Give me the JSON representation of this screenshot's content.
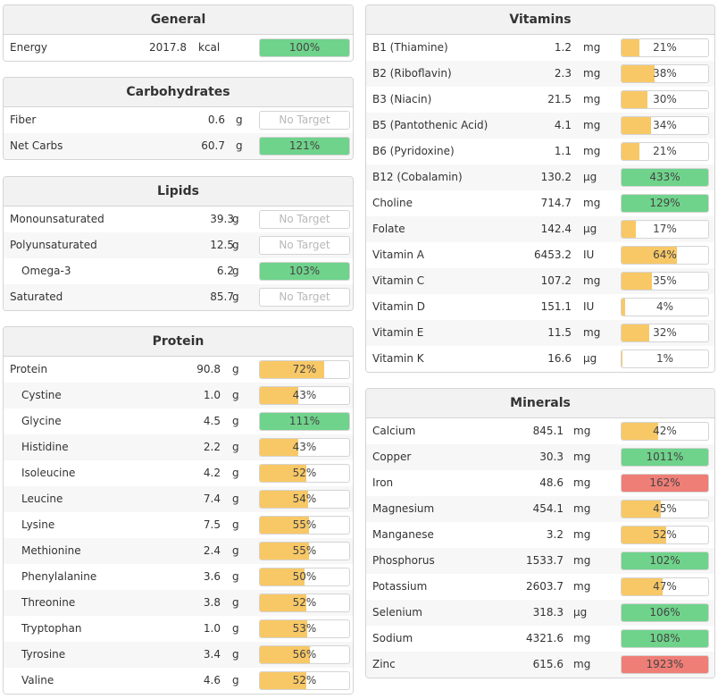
{
  "colors": {
    "green": "#6fd38b",
    "orange": "#f8c866",
    "red": "#ef7e76",
    "none": "#ffffff"
  },
  "panels": [
    {
      "key": "general",
      "title": "General",
      "items": [
        {
          "name": "Energy",
          "amount": "2017.8",
          "unit": "kcal",
          "pct": "100%",
          "fill": 1.0,
          "color": "green"
        }
      ]
    },
    {
      "key": "carbohydrates",
      "title": "Carbohydrates",
      "items": [
        {
          "name": "Fiber",
          "amount": "0.6",
          "unit": "g",
          "pct": "No Target",
          "fill": 0,
          "color": "none"
        },
        {
          "name": "Net Carbs",
          "amount": "60.7",
          "unit": "g",
          "pct": "121%",
          "fill": 1.0,
          "color": "green"
        }
      ]
    },
    {
      "key": "lipids",
      "title": "Lipids",
      "items": [
        {
          "name": "Monounsaturated",
          "amount": "39.3",
          "unit": "g",
          "pct": "No Target",
          "fill": 0,
          "color": "none"
        },
        {
          "name": "Polyunsaturated",
          "amount": "12.5",
          "unit": "g",
          "pct": "No Target",
          "fill": 0,
          "color": "none"
        },
        {
          "name": "Omega-3",
          "amount": "6.2",
          "unit": "g",
          "pct": "103%",
          "fill": 1.0,
          "color": "green",
          "indent": true
        },
        {
          "name": "Saturated",
          "amount": "85.7",
          "unit": "g",
          "pct": "No Target",
          "fill": 0,
          "color": "none"
        }
      ]
    },
    {
      "key": "protein",
      "title": "Protein",
      "items": [
        {
          "name": "Protein",
          "amount": "90.8",
          "unit": "g",
          "pct": "72%",
          "fill": 0.72,
          "color": "orange"
        },
        {
          "name": "Cystine",
          "amount": "1.0",
          "unit": "g",
          "pct": "43%",
          "fill": 0.43,
          "color": "orange",
          "indent": true
        },
        {
          "name": "Glycine",
          "amount": "4.5",
          "unit": "g",
          "pct": "111%",
          "fill": 1.0,
          "color": "green",
          "indent": true
        },
        {
          "name": "Histidine",
          "amount": "2.2",
          "unit": "g",
          "pct": "43%",
          "fill": 0.43,
          "color": "orange",
          "indent": true
        },
        {
          "name": "Isoleucine",
          "amount": "4.2",
          "unit": "g",
          "pct": "52%",
          "fill": 0.52,
          "color": "orange",
          "indent": true
        },
        {
          "name": "Leucine",
          "amount": "7.4",
          "unit": "g",
          "pct": "54%",
          "fill": 0.54,
          "color": "orange",
          "indent": true
        },
        {
          "name": "Lysine",
          "amount": "7.5",
          "unit": "g",
          "pct": "55%",
          "fill": 0.55,
          "color": "orange",
          "indent": true
        },
        {
          "name": "Methionine",
          "amount": "2.4",
          "unit": "g",
          "pct": "55%",
          "fill": 0.55,
          "color": "orange",
          "indent": true
        },
        {
          "name": "Phenylalanine",
          "amount": "3.6",
          "unit": "g",
          "pct": "50%",
          "fill": 0.5,
          "color": "orange",
          "indent": true
        },
        {
          "name": "Threonine",
          "amount": "3.8",
          "unit": "g",
          "pct": "52%",
          "fill": 0.52,
          "color": "orange",
          "indent": true
        },
        {
          "name": "Tryptophan",
          "amount": "1.0",
          "unit": "g",
          "pct": "53%",
          "fill": 0.53,
          "color": "orange",
          "indent": true
        },
        {
          "name": "Tyrosine",
          "amount": "3.4",
          "unit": "g",
          "pct": "56%",
          "fill": 0.56,
          "color": "orange",
          "indent": true
        },
        {
          "name": "Valine",
          "amount": "4.6",
          "unit": "g",
          "pct": "52%",
          "fill": 0.52,
          "color": "orange",
          "indent": true
        }
      ]
    },
    {
      "key": "vitamins",
      "title": "Vitamins",
      "items": [
        {
          "name": "B1 (Thiamine)",
          "amount": "1.2",
          "unit": "mg",
          "pct": "21%",
          "fill": 0.21,
          "color": "orange"
        },
        {
          "name": "B2 (Riboflavin)",
          "amount": "2.3",
          "unit": "mg",
          "pct": "38%",
          "fill": 0.38,
          "color": "orange"
        },
        {
          "name": "B3 (Niacin)",
          "amount": "21.5",
          "unit": "mg",
          "pct": "30%",
          "fill": 0.3,
          "color": "orange"
        },
        {
          "name": "B5 (Pantothenic Acid)",
          "amount": "4.1",
          "unit": "mg",
          "pct": "34%",
          "fill": 0.34,
          "color": "orange"
        },
        {
          "name": "B6 (Pyridoxine)",
          "amount": "1.1",
          "unit": "mg",
          "pct": "21%",
          "fill": 0.21,
          "color": "orange"
        },
        {
          "name": "B12 (Cobalamin)",
          "amount": "130.2",
          "unit": "µg",
          "pct": "433%",
          "fill": 1.0,
          "color": "green"
        },
        {
          "name": "Choline",
          "amount": "714.7",
          "unit": "mg",
          "pct": "129%",
          "fill": 1.0,
          "color": "green"
        },
        {
          "name": "Folate",
          "amount": "142.4",
          "unit": "µg",
          "pct": "17%",
          "fill": 0.17,
          "color": "orange"
        },
        {
          "name": "Vitamin A",
          "amount": "6453.2",
          "unit": "IU",
          "pct": "64%",
          "fill": 0.64,
          "color": "orange"
        },
        {
          "name": "Vitamin C",
          "amount": "107.2",
          "unit": "mg",
          "pct": "35%",
          "fill": 0.35,
          "color": "orange"
        },
        {
          "name": "Vitamin D",
          "amount": "151.1",
          "unit": "IU",
          "pct": "4%",
          "fill": 0.04,
          "color": "orange"
        },
        {
          "name": "Vitamin E",
          "amount": "11.5",
          "unit": "mg",
          "pct": "32%",
          "fill": 0.32,
          "color": "orange"
        },
        {
          "name": "Vitamin K",
          "amount": "16.6",
          "unit": "µg",
          "pct": "1%",
          "fill": 0.01,
          "color": "orange"
        }
      ]
    },
    {
      "key": "minerals",
      "title": "Minerals",
      "items": [
        {
          "name": "Calcium",
          "amount": "845.1",
          "unit": "mg",
          "pct": "42%",
          "fill": 0.42,
          "color": "orange"
        },
        {
          "name": "Copper",
          "amount": "30.3",
          "unit": "mg",
          "pct": "1011%",
          "fill": 1.0,
          "color": "green"
        },
        {
          "name": "Iron",
          "amount": "48.6",
          "unit": "mg",
          "pct": "162%",
          "fill": 1.0,
          "color": "red"
        },
        {
          "name": "Magnesium",
          "amount": "454.1",
          "unit": "mg",
          "pct": "45%",
          "fill": 0.45,
          "color": "orange"
        },
        {
          "name": "Manganese",
          "amount": "3.2",
          "unit": "mg",
          "pct": "52%",
          "fill": 0.52,
          "color": "orange"
        },
        {
          "name": "Phosphorus",
          "amount": "1533.7",
          "unit": "mg",
          "pct": "102%",
          "fill": 1.0,
          "color": "green"
        },
        {
          "name": "Potassium",
          "amount": "2603.7",
          "unit": "mg",
          "pct": "47%",
          "fill": 0.47,
          "color": "orange"
        },
        {
          "name": "Selenium",
          "amount": "318.3",
          "unit": "µg",
          "pct": "106%",
          "fill": 1.0,
          "color": "green"
        },
        {
          "name": "Sodium",
          "amount": "4321.6",
          "unit": "mg",
          "pct": "108%",
          "fill": 1.0,
          "color": "green"
        },
        {
          "name": "Zinc",
          "amount": "615.6",
          "unit": "mg",
          "pct": "1923%",
          "fill": 1.0,
          "color": "red"
        }
      ]
    }
  ]
}
